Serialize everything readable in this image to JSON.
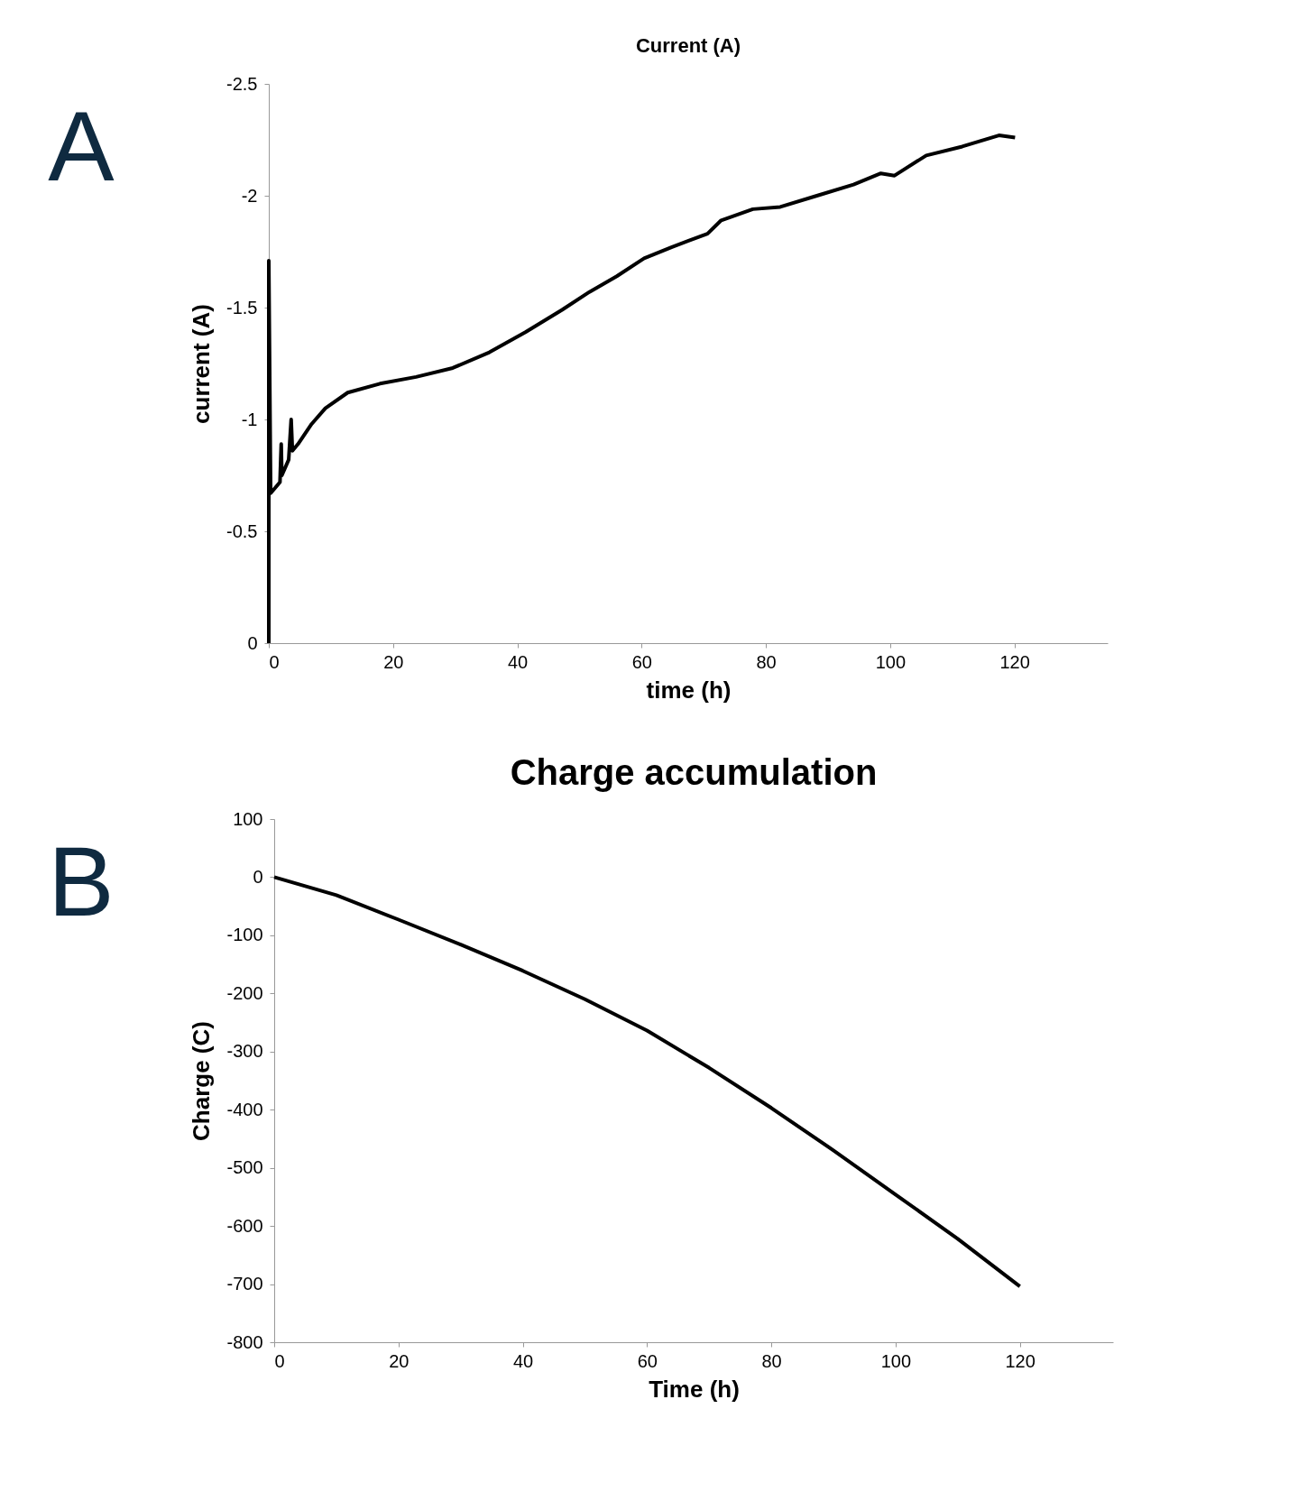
{
  "chart_data": [
    {
      "type": "line",
      "title": "Current (A)",
      "xlabel": "time (h)",
      "ylabel": "current (A)",
      "annotations": [
        "A"
      ],
      "grid": false,
      "line_style": "solid",
      "x": [
        0,
        0,
        0.3,
        1.8,
        2,
        2.1,
        3.2,
        3.6,
        3.8,
        4.7,
        6.9,
        9.1,
        12.7,
        17.9,
        23.7,
        29.6,
        35.5,
        41.3,
        47.2,
        51.6,
        56,
        60.4,
        64.8,
        70.6,
        72.8,
        77.9,
        82.3,
        88.2,
        94.1,
        98.5,
        100.7,
        105.8,
        111.6,
        117.5,
        120.1
      ],
      "series": [
        {
          "color": "#000000",
          "values": [
            0,
            -1.71,
            -0.67,
            -0.72,
            -0.89,
            -0.75,
            -0.82,
            -1.0,
            -0.86,
            -0.89,
            -0.98,
            -1.05,
            -1.12,
            -1.16,
            -1.19,
            -1.23,
            -1.3,
            -1.39,
            -1.49,
            -1.57,
            -1.64,
            -1.72,
            -1.77,
            -1.83,
            -1.89,
            -1.94,
            -1.95,
            -2.0,
            -2.05,
            -2.1,
            -2.09,
            -2.18,
            -2.22,
            -2.27,
            -2.26
          ]
        }
      ],
      "xlim": [
        0,
        135
      ],
      "xticks": [
        0,
        20,
        40,
        60,
        80,
        100,
        120
      ],
      "ylim": [
        0,
        -2.5
      ],
      "yticks": [
        0,
        -0.5,
        -1,
        -1.5,
        -2,
        -2.5
      ]
    },
    {
      "type": "line",
      "title": "Charge accumulation",
      "xlabel": "Time (h)",
      "ylabel": "Charge (C)",
      "annotations": [
        "B"
      ],
      "grid": false,
      "line_style": "solid",
      "x": [
        0,
        10,
        20,
        30,
        40,
        50,
        60,
        70,
        80,
        90,
        100,
        110,
        120
      ],
      "series": [
        {
          "color": "#000000",
          "values": [
            0,
            -31,
            -73,
            -116,
            -161,
            -210,
            -264,
            -328,
            -397,
            -470,
            -546,
            -622,
            -704
          ]
        }
      ],
      "xlim": [
        0,
        135
      ],
      "xticks": [
        0,
        20,
        40,
        60,
        80,
        100,
        120
      ],
      "ylim": [
        -800,
        100
      ],
      "yticks": [
        100,
        0,
        -100,
        -200,
        -300,
        -400,
        -500,
        -600,
        -700,
        -800
      ]
    }
  ]
}
